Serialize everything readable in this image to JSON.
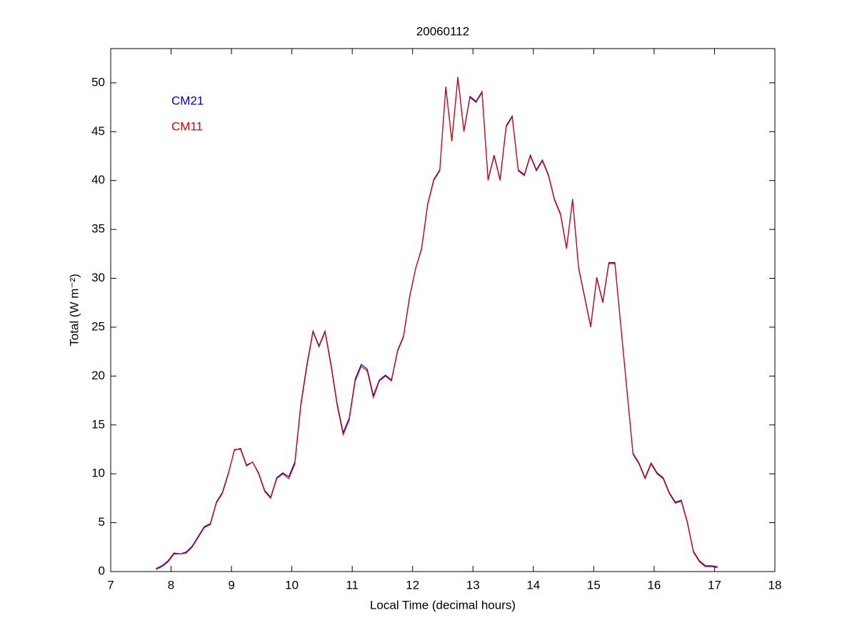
{
  "chart_data": {
    "type": "line",
    "title": "20060112",
    "xlabel": "Local Time (decimal hours)",
    "ylabel": "Total (W m⁻²)",
    "xlim": [
      7,
      18
    ],
    "xticks": [
      7,
      8,
      9,
      10,
      11,
      12,
      13,
      14,
      15,
      16,
      17,
      18
    ],
    "ylim": [
      0,
      53.5
    ],
    "yticks": [
      0,
      5,
      10,
      15,
      20,
      25,
      30,
      35,
      40,
      45,
      50
    ],
    "legend": "upper left",
    "x": [
      7.75,
      7.85,
      7.95,
      8.05,
      8.15,
      8.25,
      8.35,
      8.45,
      8.55,
      8.65,
      8.75,
      8.85,
      8.95,
      9.05,
      9.15,
      9.25,
      9.35,
      9.45,
      9.55,
      9.65,
      9.75,
      9.85,
      9.95,
      10.05,
      10.15,
      10.25,
      10.35,
      10.45,
      10.55,
      10.65,
      10.75,
      10.85,
      10.95,
      11.05,
      11.15,
      11.25,
      11.35,
      11.45,
      11.55,
      11.65,
      11.75,
      11.85,
      11.95,
      12.05,
      12.15,
      12.25,
      12.35,
      12.45,
      12.55,
      12.65,
      12.75,
      12.85,
      12.95,
      13.05,
      13.15,
      13.25,
      13.35,
      13.45,
      13.55,
      13.65,
      13.75,
      13.85,
      13.95,
      14.05,
      14.15,
      14.25,
      14.35,
      14.45,
      14.55,
      14.65,
      14.75,
      14.85,
      14.95,
      15.05,
      15.15,
      15.25,
      15.35,
      15.45,
      15.55,
      15.65,
      15.75,
      15.85,
      15.95,
      16.05,
      16.15,
      16.25,
      16.35,
      16.45,
      16.55,
      16.65,
      16.75,
      16.85,
      16.95,
      17.05
    ],
    "series": [
      {
        "name": "CM21",
        "color": "#0000bf",
        "values": [
          0.3,
          0.6,
          1.1,
          1.9,
          1.8,
          2.0,
          2.6,
          3.6,
          4.6,
          4.9,
          7.1,
          8.1,
          10.1,
          12.4,
          12.6,
          10.9,
          11.2,
          10.1,
          8.3,
          7.6,
          9.6,
          10.1,
          9.7,
          11.2,
          17.2,
          21.2,
          24.6,
          23.1,
          24.6,
          21.2,
          17.2,
          14.2,
          15.7,
          19.7,
          21.2,
          20.7,
          18.0,
          19.6,
          20.1,
          19.6,
          22.6,
          24.1,
          28.1,
          31.0,
          33.1,
          37.6,
          40.1,
          41.1,
          49.6,
          44.1,
          50.6,
          45.1,
          48.6,
          48.1,
          49.1,
          40.1,
          42.6,
          40.1,
          45.6,
          46.6,
          41.1,
          40.6,
          42.6,
          41.1,
          42.1,
          40.6,
          38.1,
          36.6,
          33.1,
          38.1,
          31.1,
          28.1,
          25.1,
          30.1,
          27.6,
          31.6,
          31.6,
          25.1,
          18.6,
          12.1,
          11.1,
          9.6,
          11.1,
          10.1,
          9.6,
          8.1,
          7.1,
          7.3,
          5.1,
          2.1,
          1.1,
          0.6,
          0.6,
          0.5
        ]
      },
      {
        "name": "CM11",
        "color": "#e00000",
        "values": [
          0.2,
          0.5,
          1.0,
          1.8,
          1.8,
          1.9,
          2.5,
          3.5,
          4.5,
          4.8,
          7.0,
          8.0,
          10.0,
          12.5,
          12.5,
          10.8,
          11.2,
          10.0,
          8.2,
          7.5,
          9.5,
          10.0,
          9.5,
          11.0,
          17.0,
          21.0,
          24.5,
          23.0,
          24.5,
          21.0,
          17.0,
          14.0,
          15.5,
          19.5,
          21.0,
          20.5,
          17.8,
          19.5,
          20.0,
          19.5,
          22.5,
          24.0,
          28.0,
          31.0,
          33.0,
          37.5,
          40.0,
          41.0,
          49.5,
          44.0,
          50.5,
          45.0,
          48.5,
          48.0,
          49.0,
          40.0,
          42.5,
          40.0,
          45.5,
          46.5,
          41.0,
          40.5,
          42.5,
          41.0,
          42.0,
          40.5,
          38.0,
          36.5,
          33.0,
          38.0,
          31.0,
          28.0,
          25.0,
          30.0,
          27.5,
          31.5,
          31.5,
          25.0,
          18.5,
          12.0,
          11.0,
          9.5,
          11.0,
          10.0,
          9.5,
          8.0,
          7.0,
          7.2,
          5.0,
          2.0,
          1.0,
          0.5,
          0.5,
          0.4
        ]
      }
    ]
  }
}
